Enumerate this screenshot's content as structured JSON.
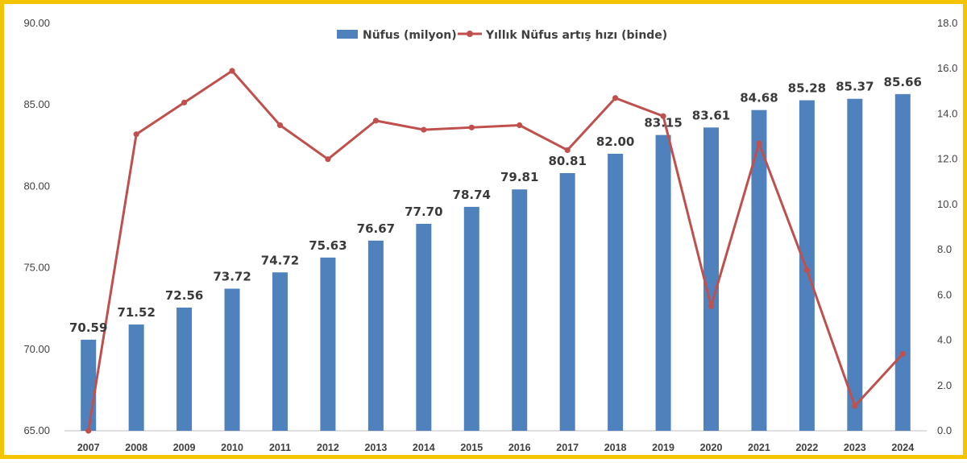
{
  "chart_data": {
    "type": "bar+line",
    "categories": [
      "2007",
      "2008",
      "2009",
      "2010",
      "2011",
      "2012",
      "2013",
      "2014",
      "2015",
      "2016",
      "2017",
      "2018",
      "2019",
      "2020",
      "2021",
      "2022",
      "2023",
      "2024"
    ],
    "series": [
      {
        "name": "Nüfus (milyon)",
        "type": "bar",
        "axis": "left",
        "color": "#4F81BD",
        "values": [
          70.59,
          71.52,
          72.56,
          73.72,
          74.72,
          75.63,
          76.67,
          77.7,
          78.74,
          79.81,
          80.81,
          82.0,
          83.15,
          83.61,
          84.68,
          85.28,
          85.37,
          85.66
        ],
        "data_labels": [
          "70.59",
          "71.52",
          "72.56",
          "73.72",
          "74.72",
          "75.63",
          "76.67",
          "77.70",
          "78.74",
          "79.81",
          "80.81",
          "82.00",
          "83.15",
          "83.61",
          "84.68",
          "85.28",
          "85.37",
          "85.66"
        ]
      },
      {
        "name": "Yıllık Nüfus artış hızı (binde)",
        "type": "line",
        "axis": "right",
        "color": "#C0504D",
        "values": [
          0.0,
          13.1,
          14.5,
          15.9,
          13.5,
          12.0,
          13.7,
          13.3,
          13.4,
          13.5,
          12.4,
          14.7,
          13.9,
          5.5,
          12.7,
          7.1,
          1.1,
          3.4
        ]
      }
    ],
    "y_left": {
      "min": 65,
      "max": 90,
      "ticks": [
        "65.00",
        "70.00",
        "75.00",
        "80.00",
        "85.00",
        "90.00"
      ]
    },
    "y_right": {
      "min": 0,
      "max": 18,
      "ticks": [
        "0.0",
        "2.0",
        "4.0",
        "6.0",
        "8.0",
        "10.0",
        "12.0",
        "14.0",
        "16.0",
        "18.0"
      ]
    },
    "legend_position": "top-center",
    "grid": false
  },
  "frame_color": "#F5C400"
}
